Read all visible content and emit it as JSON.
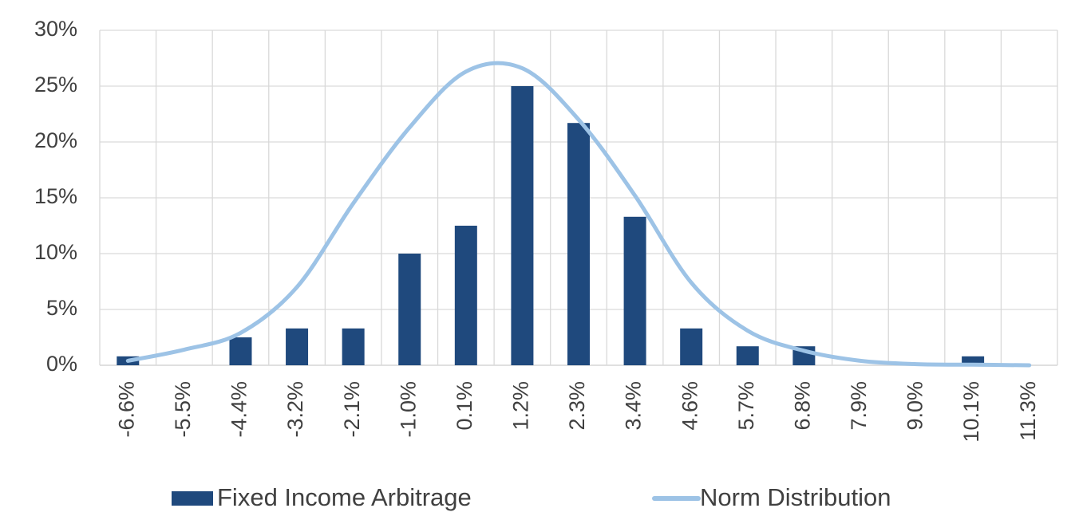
{
  "chart_data": {
    "type": "bar",
    "categories": [
      "-6.6%",
      "-5.5%",
      "-4.4%",
      "-3.2%",
      "-2.1%",
      "-1.0%",
      "0.1%",
      "1.2%",
      "2.3%",
      "3.4%",
      "4.6%",
      "5.7%",
      "6.8%",
      "7.9%",
      "9.0%",
      "10.1%",
      "11.3%"
    ],
    "series": [
      {
        "name": "Fixed Income Arbitrage",
        "type": "bar",
        "color": "#1f497d",
        "values": [
          0.8,
          0,
          2.5,
          3.3,
          3.3,
          10,
          12.5,
          25,
          21.7,
          13.3,
          3.3,
          1.7,
          1.7,
          0,
          0,
          0.8,
          0
        ]
      },
      {
        "name": "Norm Distribution",
        "type": "line",
        "color": "#9dc3e6",
        "values": [
          0.4,
          1.4,
          2.9,
          7.0,
          14.5,
          21.3,
          26.3,
          26.6,
          22,
          15.2,
          7.4,
          3.1,
          1.3,
          0.4,
          0.1,
          0.05,
          0
        ]
      }
    ],
    "ylim": [
      0,
      30
    ],
    "yticks": [
      {
        "value": 0,
        "label": "0%"
      },
      {
        "value": 5,
        "label": "5%"
      },
      {
        "value": 10,
        "label": "10%"
      },
      {
        "value": 15,
        "label": "15%"
      },
      {
        "value": 20,
        "label": "20%"
      },
      {
        "value": 25,
        "label": "25%"
      },
      {
        "value": 30,
        "label": "30%"
      }
    ],
    "grid": true,
    "legend": "bottom"
  }
}
